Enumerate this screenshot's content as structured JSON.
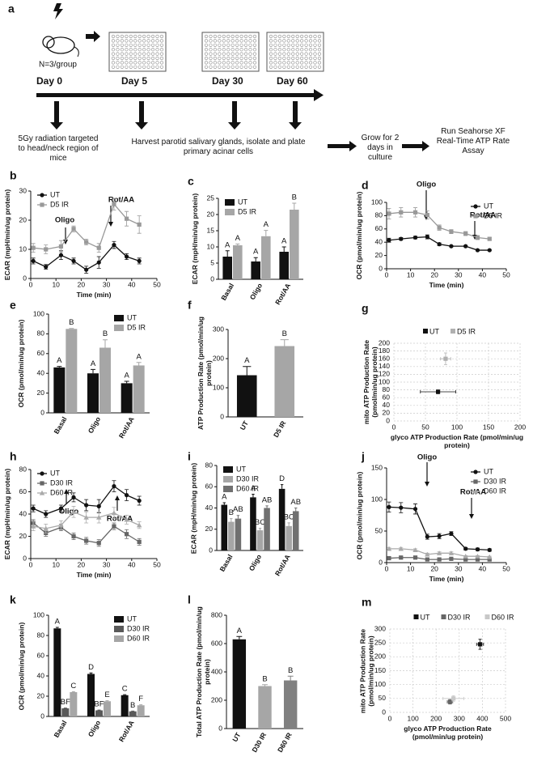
{
  "header": {
    "label": "a",
    "group": "N=3/group",
    "days": [
      "Day 0",
      "Day 5",
      "Day 30",
      "Day 60"
    ],
    "steps": [
      "5Gy radiation targeted to head/neck region of mice",
      "Harvest parotid salivary glands, isolate and plate primary acinar cells",
      "Grow for 2 days in culture",
      "Run Seahorse XF Real-Time ATP Rate Assay"
    ]
  },
  "chart_data": [
    {
      "panel": "b",
      "type": "line",
      "x": [
        1,
        6,
        12,
        17,
        22,
        27,
        33,
        38,
        43
      ],
      "xlim": [
        0,
        50
      ],
      "xticks": [
        0,
        10,
        20,
        30,
        40,
        50
      ],
      "ylim": [
        0,
        30
      ],
      "yticks": [
        0,
        10,
        20,
        30
      ],
      "xlabel": "Time (min)",
      "ylabel": "ECAR (mpH/min/ug protein)",
      "legend": "upper left",
      "annotations": [
        "Oligo",
        "Rot/AA"
      ],
      "series": [
        {
          "name": "UT",
          "color": "#111111",
          "marker": "circle",
          "values": [
            6,
            4,
            8,
            6,
            3,
            5.5,
            11.5,
            7.5,
            6
          ],
          "errors": [
            1,
            0.8,
            1.5,
            1,
            1.2,
            2,
            1.2,
            1,
            1
          ]
        },
        {
          "name": "D5 IR",
          "color": "#999999",
          "marker": "square",
          "values": [
            10.5,
            10,
            11,
            17,
            12.5,
            10.5,
            25.5,
            20.5,
            18.5
          ],
          "errors": [
            1.5,
            1.5,
            2,
            1,
            1,
            1.5,
            2,
            2.5,
            3
          ]
        }
      ]
    },
    {
      "panel": "c",
      "type": "bar",
      "categories": [
        "Basal",
        "Oligo",
        "Rot/AA"
      ],
      "ylim": [
        0,
        25
      ],
      "yticks": [
        0,
        5,
        10,
        15,
        20,
        25
      ],
      "ylabel": "ECAR (mpH/min/ug protein)",
      "legend": "upper left",
      "series": [
        {
          "name": "UT",
          "color": "#111111",
          "values": [
            7,
            5.5,
            8.5
          ],
          "errors": [
            1.8,
            1.2,
            1.5
          ],
          "letters": [
            "A",
            "A",
            "A"
          ]
        },
        {
          "name": "D5 IR",
          "color": "#a6a6a6",
          "values": [
            10.5,
            13.3,
            21.5
          ],
          "errors": [
            0.4,
            1.8,
            2
          ],
          "letters": [
            "A",
            "A",
            "B"
          ]
        }
      ]
    },
    {
      "panel": "d",
      "type": "line",
      "x": [
        1,
        6,
        12,
        17,
        22,
        27,
        33,
        38,
        43
      ],
      "xlim": [
        0,
        50
      ],
      "xticks": [
        0,
        10,
        20,
        30,
        40,
        50
      ],
      "ylim": [
        0,
        100
      ],
      "yticks": [
        0,
        20,
        40,
        60,
        80,
        100
      ],
      "xlabel": "Time (min)",
      "ylabel": "OCR (pmol/min/ug protein)",
      "legend": "upper right",
      "annotations": [
        "Oligo",
        "Rot/AA"
      ],
      "series": [
        {
          "name": "UT",
          "color": "#111111",
          "marker": "circle",
          "values": [
            43,
            45,
            47,
            48,
            37,
            34,
            34,
            28,
            28
          ],
          "errors": [
            3,
            2,
            2,
            3,
            2,
            1,
            1,
            1,
            1
          ]
        },
        {
          "name": "D5 IR",
          "color": "#999999",
          "marker": "square",
          "values": [
            83,
            85,
            85,
            81,
            62,
            56,
            53,
            47,
            45
          ],
          "errors": [
            8,
            7,
            7,
            6,
            4,
            3,
            3,
            3,
            2
          ]
        }
      ]
    },
    {
      "panel": "e",
      "type": "bar",
      "categories": [
        "Basal",
        "Oligo",
        "Rot/AA"
      ],
      "ylim": [
        0,
        100
      ],
      "yticks": [
        0,
        20,
        40,
        60,
        80,
        100
      ],
      "ylabel": "OCR (pmol/min/ug protein)",
      "legend": "upper right",
      "series": [
        {
          "name": "UT",
          "color": "#111111",
          "values": [
            46,
            40,
            30
          ],
          "errors": [
            1,
            4,
            2
          ],
          "letters": [
            "A",
            "A",
            "A"
          ]
        },
        {
          "name": "D5 IR",
          "color": "#a6a6a6",
          "values": [
            85,
            66,
            48
          ],
          "errors": [
            0.5,
            8,
            3
          ],
          "letters": [
            "B",
            "B",
            "A"
          ]
        }
      ]
    },
    {
      "panel": "f",
      "type": "bar",
      "categories": [
        "UT",
        "D5 IR"
      ],
      "values": [
        143,
        243
      ],
      "errors": [
        30,
        22
      ],
      "letters": [
        "A",
        "B"
      ],
      "colors": [
        "#111111",
        "#a6a6a6"
      ],
      "ylim": [
        0,
        300
      ],
      "yticks": [
        0,
        100,
        200,
        300
      ],
      "ylabel": "ATP Production Rate (pmol/min/ug protein)"
    },
    {
      "panel": "g",
      "type": "scatter",
      "xlim": [
        0,
        200
      ],
      "xticks": [
        0,
        50,
        100,
        150,
        200
      ],
      "ylim": [
        0,
        200
      ],
      "yticks": [
        0,
        20,
        40,
        60,
        80,
        100,
        120,
        140,
        160,
        180,
        200
      ],
      "grid": true,
      "legend": "top",
      "xlabel": "glyco ATP Production Rate (pmol/min/ug protein)",
      "ylabel": "mito ATP Production Rate (pmol/min/ug protein)",
      "series": [
        {
          "name": "UT",
          "color": "#111111",
          "x": [
            70
          ],
          "values": [
            75
          ],
          "xerr": [
            28
          ],
          "errors": [
            5
          ]
        },
        {
          "name": "D5 IR",
          "color": "#b0b0b0",
          "x": [
            82
          ],
          "values": [
            160
          ],
          "xerr": [
            8
          ],
          "errors": [
            15
          ]
        }
      ]
    },
    {
      "panel": "h",
      "type": "line",
      "x": [
        1,
        6,
        12,
        17,
        22,
        27,
        33,
        38,
        43
      ],
      "xlim": [
        0,
        50
      ],
      "xticks": [
        0,
        10,
        20,
        30,
        40,
        50
      ],
      "ylim": [
        0,
        80
      ],
      "yticks": [
        0,
        20,
        40,
        60,
        80
      ],
      "xlabel": "Time (min)",
      "ylabel": "ECAR (mpH/min/ug protein)",
      "legend": "upper left",
      "annotations": [
        "Oligo",
        "Rot/AA"
      ],
      "series": [
        {
          "name": "UT",
          "color": "#111111",
          "marker": "circle",
          "values": [
            45,
            40,
            45,
            55,
            48,
            47,
            65,
            57,
            52
          ],
          "errors": [
            3,
            3,
            3,
            4,
            5,
            6,
            5,
            5,
            4
          ]
        },
        {
          "name": "D30 IR",
          "color": "#666666",
          "marker": "square",
          "values": [
            32,
            23,
            28,
            20,
            16,
            14,
            29,
            22,
            15
          ],
          "errors": [
            3,
            3,
            3,
            3,
            3,
            3,
            3,
            4,
            3
          ]
        },
        {
          "name": "D60 IR",
          "color": "#aaaaaa",
          "marker": "triangle",
          "values": [
            29,
            27,
            30,
            42,
            37,
            37,
            41,
            35,
            30
          ],
          "errors": [
            4,
            4,
            4,
            5,
            5,
            5,
            5,
            4,
            3
          ]
        }
      ]
    },
    {
      "panel": "i",
      "type": "bar",
      "categories": [
        "Basal",
        "Oligo",
        "Rot/AA"
      ],
      "ylim": [
        0,
        80
      ],
      "yticks": [
        0,
        20,
        40,
        60,
        80
      ],
      "ylabel": "ECAR (mpH/min/ug protein)",
      "legend": "upper left",
      "series": [
        {
          "name": "UT",
          "color": "#111111",
          "values": [
            43,
            50,
            58
          ],
          "errors": [
            2,
            3,
            4
          ],
          "letters": [
            "A",
            "A",
            "D"
          ]
        },
        {
          "name": "D30 IR",
          "color": "#a6a6a6",
          "values": [
            27,
            19,
            23
          ],
          "errors": [
            3,
            2,
            3
          ],
          "letters": [
            "B",
            "BC",
            "BC"
          ]
        },
        {
          "name": "D60 IR",
          "color": "#707070",
          "values": [
            30,
            40,
            37
          ],
          "errors": [
            3,
            2,
            3
          ],
          "letters": [
            "AB",
            "AB",
            "AB"
          ]
        }
      ]
    },
    {
      "panel": "j",
      "type": "line",
      "x": [
        1,
        6,
        12,
        17,
        22,
        27,
        33,
        38,
        43
      ],
      "xlim": [
        0,
        50
      ],
      "xticks": [
        0,
        10,
        20,
        30,
        40,
        50
      ],
      "ylim": [
        0,
        150
      ],
      "yticks": [
        0,
        50,
        100,
        150
      ],
      "xlabel": "Time (min)",
      "ylabel": "OCR (pmol/min/ug protein)",
      "legend": "upper right",
      "annotations": [
        "Oligo",
        "Rot/AA"
      ],
      "series": [
        {
          "name": "UT",
          "color": "#111111",
          "marker": "circle",
          "values": [
            88,
            87,
            85,
            41,
            42,
            46,
            22,
            21,
            20
          ],
          "errors": [
            8,
            8,
            8,
            4,
            4,
            3,
            2,
            2,
            2
          ]
        },
        {
          "name": "D30 IR",
          "color": "#666666",
          "marker": "square",
          "values": [
            7,
            8,
            8,
            5,
            5,
            6,
            5,
            5,
            5
          ],
          "errors": [
            1,
            1,
            1,
            1,
            1,
            1,
            1,
            1,
            1
          ]
        },
        {
          "name": "D60 IR",
          "color": "#aaaaaa",
          "marker": "triangle",
          "values": [
            22,
            22,
            20,
            13,
            15,
            15,
            10,
            10,
            9
          ],
          "errors": [
            2,
            2,
            2,
            2,
            2,
            2,
            1,
            1,
            1
          ]
        }
      ]
    },
    {
      "panel": "k",
      "type": "bar",
      "categories": [
        "Basal",
        "Oligo",
        "Rot/AA"
      ],
      "ylim": [
        0,
        100
      ],
      "yticks": [
        0,
        20,
        40,
        60,
        80,
        100
      ],
      "ylabel": "OCR (pmol/min/ug protein)",
      "legend": "upper right",
      "series": [
        {
          "name": "UT",
          "color": "#111111",
          "values": [
            87,
            42,
            21
          ],
          "errors": [
            1,
            1,
            0.5
          ],
          "letters": [
            "A",
            "D",
            "C"
          ]
        },
        {
          "name": "D30 IR",
          "color": "#595959",
          "values": [
            8,
            6,
            5
          ],
          "errors": [
            0.3,
            0.3,
            0.3
          ],
          "letters": [
            "BF",
            "BF",
            "B"
          ]
        },
        {
          "name": "D60 IR",
          "color": "#a6a6a6",
          "values": [
            24,
            15,
            11
          ],
          "errors": [
            0.5,
            0.5,
            0.5
          ],
          "letters": [
            "C",
            "E",
            "F"
          ]
        }
      ]
    },
    {
      "panel": "l",
      "type": "bar",
      "categories": [
        "UT",
        "D30 IR",
        "D60 IR"
      ],
      "values": [
        630,
        300,
        340
      ],
      "errors": [
        20,
        10,
        30
      ],
      "letters": [
        "A",
        "B",
        "B"
      ],
      "colors": [
        "#111111",
        "#a6a6a6",
        "#808080"
      ],
      "ylim": [
        0,
        800
      ],
      "yticks": [
        0,
        200,
        400,
        600,
        800
      ],
      "ylabel": "Total ATP Production Rate (pmol/min/ug protein)"
    },
    {
      "panel": "m",
      "type": "scatter",
      "xlim": [
        0,
        500
      ],
      "xticks": [
        0,
        100,
        200,
        300,
        400,
        500
      ],
      "ylim": [
        0,
        300
      ],
      "yticks": [
        0,
        50,
        100,
        150,
        200,
        250,
        300
      ],
      "grid": true,
      "legend": "top",
      "xlabel": "glyco ATP Production Rate (pmol/min/ug protein)",
      "ylabel": "mito ATP Production Rate (pmol/min/ug protein)",
      "series": [
        {
          "name": "UT",
          "color": "#111111",
          "x": [
            390
          ],
          "values": [
            245
          ],
          "xerr": [
            15
          ],
          "errors": [
            18
          ]
        },
        {
          "name": "D30 IR",
          "color": "#666666",
          "x": [
            260
          ],
          "values": [
            38
          ],
          "xerr": [
            12
          ],
          "errors": [
            8
          ]
        },
        {
          "name": "D60 IR",
          "color": "#c8c8c8",
          "x": [
            275
          ],
          "values": [
            50
          ],
          "xerr": [
            45
          ],
          "errors": [
            10
          ]
        }
      ]
    }
  ]
}
